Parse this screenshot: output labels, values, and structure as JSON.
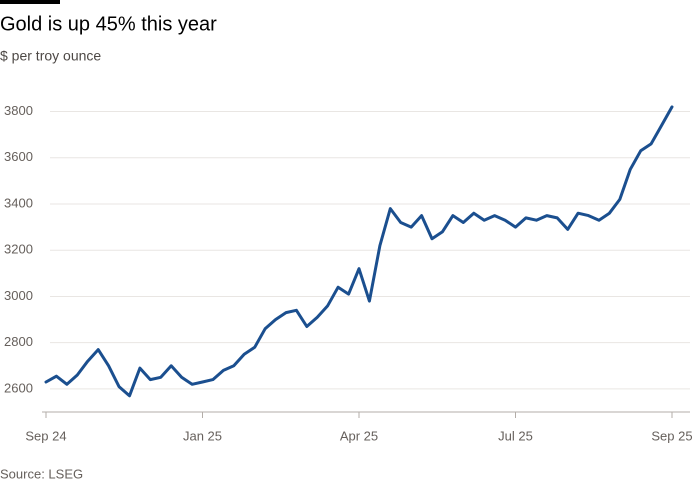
{
  "chart_data": {
    "type": "line",
    "title": "Gold is up 45% this year",
    "subtitle": "$ per troy ounce",
    "source": "Source: LSEG",
    "categories": [
      "Sep 24",
      null,
      null,
      null,
      null,
      null,
      null,
      null,
      null,
      null,
      null,
      null,
      null,
      null,
      null,
      "Jan 25",
      null,
      null,
      null,
      null,
      null,
      null,
      null,
      null,
      null,
      null,
      null,
      null,
      null,
      null,
      "Apr 25",
      null,
      null,
      null,
      null,
      null,
      null,
      null,
      null,
      null,
      null,
      null,
      null,
      null,
      null,
      "Jul 25",
      null,
      null,
      null,
      null,
      null,
      null,
      null,
      null,
      null,
      null,
      null,
      null,
      null,
      null,
      "Sep 25"
    ],
    "series": [
      {
        "name": "Gold",
        "color": "#1b4f8f",
        "values": [
          2630,
          2655,
          2620,
          2660,
          2720,
          2770,
          2700,
          2610,
          2570,
          2690,
          2640,
          2650,
          2700,
          2650,
          2620,
          2630,
          2640,
          2680,
          2700,
          2750,
          2780,
          2860,
          2900,
          2930,
          2940,
          2870,
          2910,
          2960,
          3040,
          3010,
          3120,
          2980,
          3220,
          3380,
          3320,
          3300,
          3350,
          3250,
          3280,
          3350,
          3320,
          3360,
          3330,
          3350,
          3330,
          3300,
          3340,
          3330,
          3350,
          3340,
          3290,
          3360,
          3350,
          3330,
          3360,
          3420,
          3550,
          3630,
          3660,
          3740,
          3820
        ]
      }
    ],
    "ylim": [
      2500,
      3850
    ],
    "yticks": [
      2600,
      2800,
      3000,
      3200,
      3400,
      3600,
      3800
    ],
    "grid": true
  }
}
